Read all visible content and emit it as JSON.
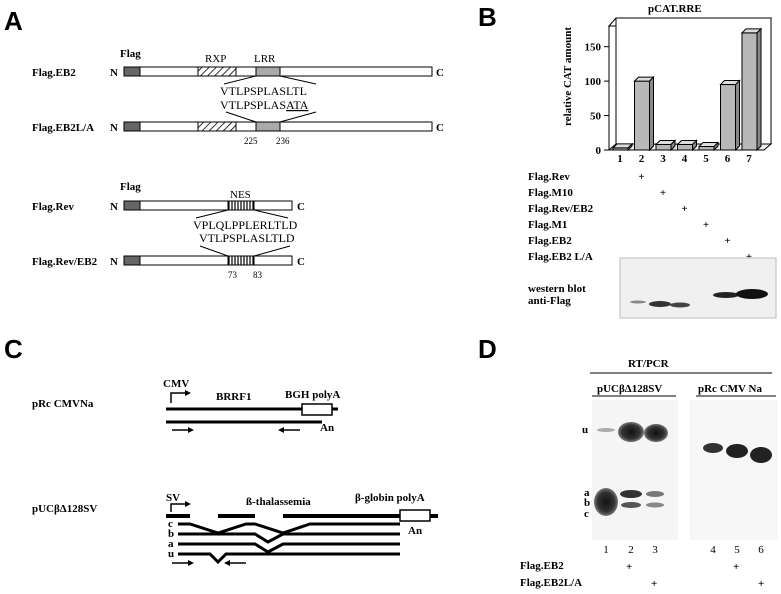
{
  "panels": {
    "A": "A",
    "B": "B",
    "C": "C",
    "D": "D"
  },
  "panel_a": {
    "flag_label": "Flag",
    "n": "N",
    "c": "C",
    "rxp": "RXP",
    "lrr": "LRR",
    "nes": "NES",
    "constructs": [
      "Flag.EB2",
      "Flag.EB2L/A",
      "Flag.Rev",
      "Flag.Rev/EB2"
    ],
    "seq_eb2": "VTLPSPLASLTL",
    "seq_eb2la_prefix": "VTLPSPLAS",
    "seq_eb2la_mut": "ATA",
    "seq_rev": "VPLQLPPLERLTLD",
    "seq_rev_eb2": "VTLPSPLASLTLD",
    "pos_eb2": [
      "225",
      "236"
    ],
    "pos_rev": [
      "73",
      "83"
    ]
  },
  "panel_b": {
    "western_label_1": "western blot",
    "western_label_2": "anti-Flag",
    "conditions": [
      "Flag.Rev",
      "Flag.M10",
      "Flag.Rev/EB2",
      "Flag.M1",
      "Flag.EB2",
      "Flag.EB2 L/A"
    ],
    "plus": "+"
  },
  "chart_data": {
    "type": "bar",
    "title": "pCAT.RRE",
    "ylabel": "relative CAT amount",
    "categories": [
      "1",
      "2",
      "3",
      "4",
      "5",
      "6",
      "7"
    ],
    "values": [
      3,
      100,
      8,
      8,
      5,
      95,
      170
    ],
    "ylim": [
      0,
      180
    ],
    "yticks": [
      0,
      50,
      100,
      150
    ],
    "bar_color": "#b8b8b8"
  },
  "panel_c": {
    "construct1": "pRc CMVNa",
    "cmv": "CMV",
    "brrf1": "BRRF1",
    "bgh": "BGH polyA",
    "an": "An",
    "construct2": "pUCβΔ128SV",
    "sv": "SV",
    "thal": "ß-thalassemia",
    "globin": "β-globin polyA",
    "rna_labels": [
      "c",
      "b",
      "a",
      "u"
    ]
  },
  "panel_d": {
    "title": "RT/PCR",
    "gel1_label": "pUCβΔ128SV",
    "gel2_label": "pRc CMV Na",
    "band_labels": [
      "u",
      "a",
      "b",
      "c"
    ],
    "lanes": [
      "1",
      "2",
      "3",
      "4",
      "5",
      "6"
    ],
    "rows": [
      "Flag.EB2",
      "Flag.EB2L/A"
    ],
    "plus": "+"
  }
}
